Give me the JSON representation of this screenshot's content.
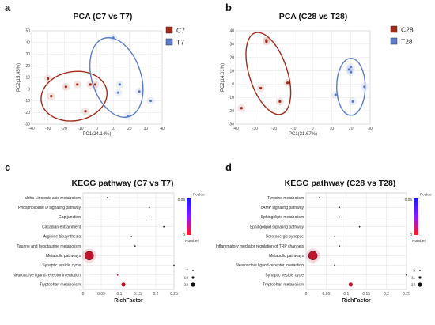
{
  "panels": [
    {
      "label": "a"
    },
    {
      "label": "b"
    },
    {
      "label": "c"
    },
    {
      "label": "d"
    }
  ],
  "chart_data": [
    {
      "type": "scatter",
      "title": "PCA (C7 vs T7)",
      "xlabel": "PC1(24.14%)",
      "ylabel": "PC2(15.45%)",
      "xlim": [
        -40,
        40
      ],
      "ylim": [
        -30,
        50
      ],
      "xticks": [
        -40,
        -30,
        -20,
        -10,
        0,
        10,
        20,
        30,
        40
      ],
      "yticks": [
        -30,
        -20,
        -10,
        0,
        10,
        20,
        30,
        40,
        50
      ],
      "grid": true,
      "legend_position": "top-right",
      "series": [
        {
          "name": "C7",
          "color": "#A52A1A",
          "x": [
            -30,
            -28,
            -19,
            -12,
            -7,
            -4,
            -1
          ],
          "y": [
            9,
            -6,
            2,
            4,
            -19,
            4,
            4
          ]
        },
        {
          "name": "T7",
          "color": "#5B7CCB",
          "x": [
            10,
            13,
            19,
            26,
            33,
            14
          ],
          "y": [
            44,
            -3,
            -23,
            -2,
            -10,
            4
          ]
        }
      ]
    },
    {
      "type": "scatter",
      "title": "PCA (C28 vs T28)",
      "xlabel": "PC1(31.67%)",
      "ylabel": "PC2(14.01%)",
      "xlim": [
        -40,
        30
      ],
      "ylim": [
        -30,
        40
      ],
      "xticks": [
        -40,
        -30,
        -20,
        -10,
        0,
        10,
        20,
        30
      ],
      "yticks": [
        -30,
        -20,
        -10,
        0,
        10,
        20,
        30,
        40
      ],
      "grid": true,
      "legend_position": "top-right",
      "series": [
        {
          "name": "C28",
          "color": "#A52A1A",
          "x": [
            -37,
            -27,
            -24,
            -24,
            -17,
            -13
          ],
          "y": [
            -18,
            -3,
            32,
            33,
            -13,
            1
          ]
        },
        {
          "name": "T28",
          "color": "#5B7CCB",
          "x": [
            12,
            19,
            20,
            21,
            20,
            27
          ],
          "y": [
            -8,
            11,
            13,
            -13,
            9,
            -2
          ]
        }
      ]
    },
    {
      "type": "scatter",
      "title": "KEGG pathway (C7 vs T7)",
      "xlabel": "RichFactor",
      "xlim": [
        0,
        0.25
      ],
      "xticks": [
        "0",
        "0.05",
        "0.1",
        "0.15",
        "0.2",
        "0.25"
      ],
      "categories": [
        "alpha-Linolenic acid metabolism",
        "Phospholipase D signaling pathway",
        "Gap junction",
        "Circadian entrainment",
        "Arginine biosynthesis",
        "Taurine and hypotaurine metabolism",
        "Metabolic pathways",
        "Synaptic vesicle cycle",
        "Neuroactive ligand-receptor interaction",
        "Tryptophan metabolism"
      ],
      "richfactor": [
        0.067,
        0.182,
        0.182,
        0.222,
        0.133,
        0.143,
        0.017,
        0.25,
        0.095,
        0.111
      ],
      "size": [
        7,
        7,
        7,
        7,
        7,
        7,
        22,
        7,
        7,
        12
      ],
      "pvalue": [
        0.5,
        0.5,
        0.5,
        0.5,
        0.5,
        0.5,
        0,
        0.5,
        0,
        0
      ],
      "pvalue_legend": {
        "title": "Pvalue",
        "top": "0.05",
        "bottom": "0"
      },
      "size_legend": {
        "title": "Number",
        "values": [
          7,
          12,
          22
        ]
      }
    },
    {
      "type": "scatter",
      "title": "KEGG pathway (C28 vs T28)",
      "xlabel": "RichFactor",
      "xlim": [
        0,
        0.25
      ],
      "xticks": [
        "0",
        "0.05",
        "0.1",
        "0.15",
        "0.2",
        "0.25"
      ],
      "categories": [
        "Tyrosine metabolism",
        "cAMP signaling pathway",
        "Sphingolipid metabolism",
        "Sphingolipid signaling pathway",
        "Serotonergic synapse",
        "Inflammatory mediator regulation of TRP channels",
        "Metabolic pathways",
        "Neuroactive ligand-receptor interaction",
        "Synaptic vesicle cycle",
        "Tryptophan metabolism"
      ],
      "richfactor": [
        0.033,
        0.083,
        0.083,
        0.133,
        0.071,
        0.083,
        0.017,
        0.071,
        0.25,
        0.111
      ],
      "size": [
        5,
        5,
        5,
        5,
        5,
        5,
        23,
        5,
        5,
        11
      ],
      "pvalue": [
        0.5,
        0.5,
        0.5,
        0.5,
        0.5,
        0.5,
        0,
        0.5,
        0.5,
        0
      ],
      "pvalue_legend": {
        "title": "Pvalue",
        "top": "0.05",
        "bottom": "0"
      },
      "size_legend": {
        "title": "Number",
        "values": [
          5,
          11,
          23
        ]
      }
    }
  ]
}
